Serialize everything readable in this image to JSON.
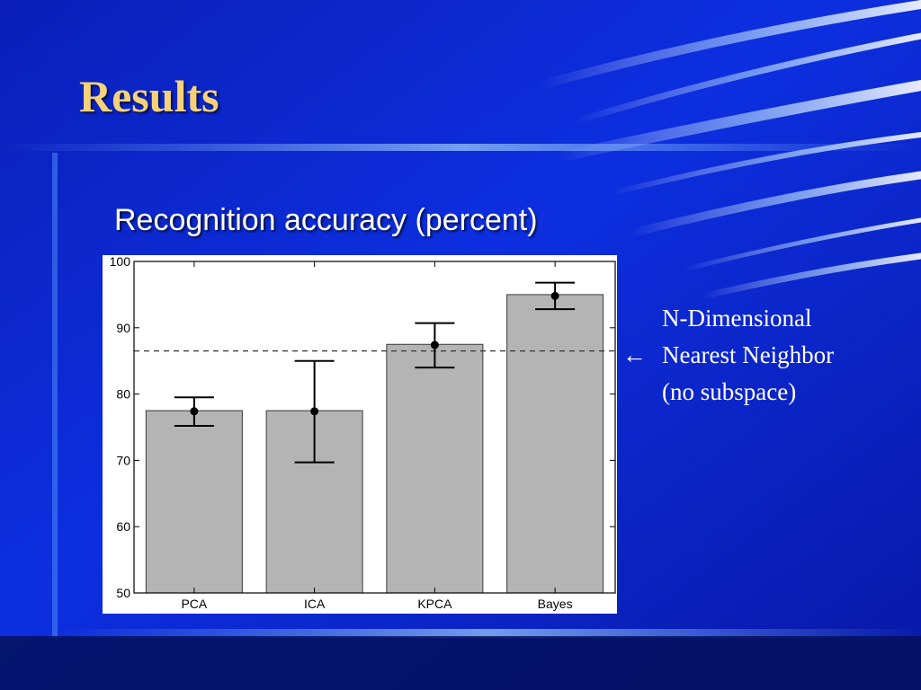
{
  "slide": {
    "title": "Results",
    "heading": "Recognition accuracy (percent)",
    "annotation": {
      "arrow": "←",
      "lines": [
        "N-Dimensional",
        "Nearest Neighbor",
        "(no subspace)"
      ]
    },
    "colors": {
      "title": "#f5d27a",
      "background_dark": "#06105e",
      "background_mid": "#0b2bd6",
      "bar_fill": "#b4b4b4",
      "text": "#ffffff"
    }
  },
  "chart_data": {
    "type": "bar",
    "title": "",
    "xlabel": "",
    "ylabel": "",
    "categories": [
      "PCA",
      "ICA",
      "KPCA",
      "Bayes"
    ],
    "values": [
      77.5,
      77.5,
      87.5,
      95
    ],
    "markers": [
      77.4,
      77.4,
      87.4,
      94.8
    ],
    "error_low": [
      75.2,
      69.7,
      84,
      92.8
    ],
    "error_high": [
      79.5,
      85,
      90.7,
      96.8
    ],
    "reference_line": 86.5,
    "ylim": [
      50,
      100
    ],
    "yticks": [
      50,
      60,
      70,
      80,
      90,
      100
    ],
    "grid": false,
    "legend": "none"
  }
}
